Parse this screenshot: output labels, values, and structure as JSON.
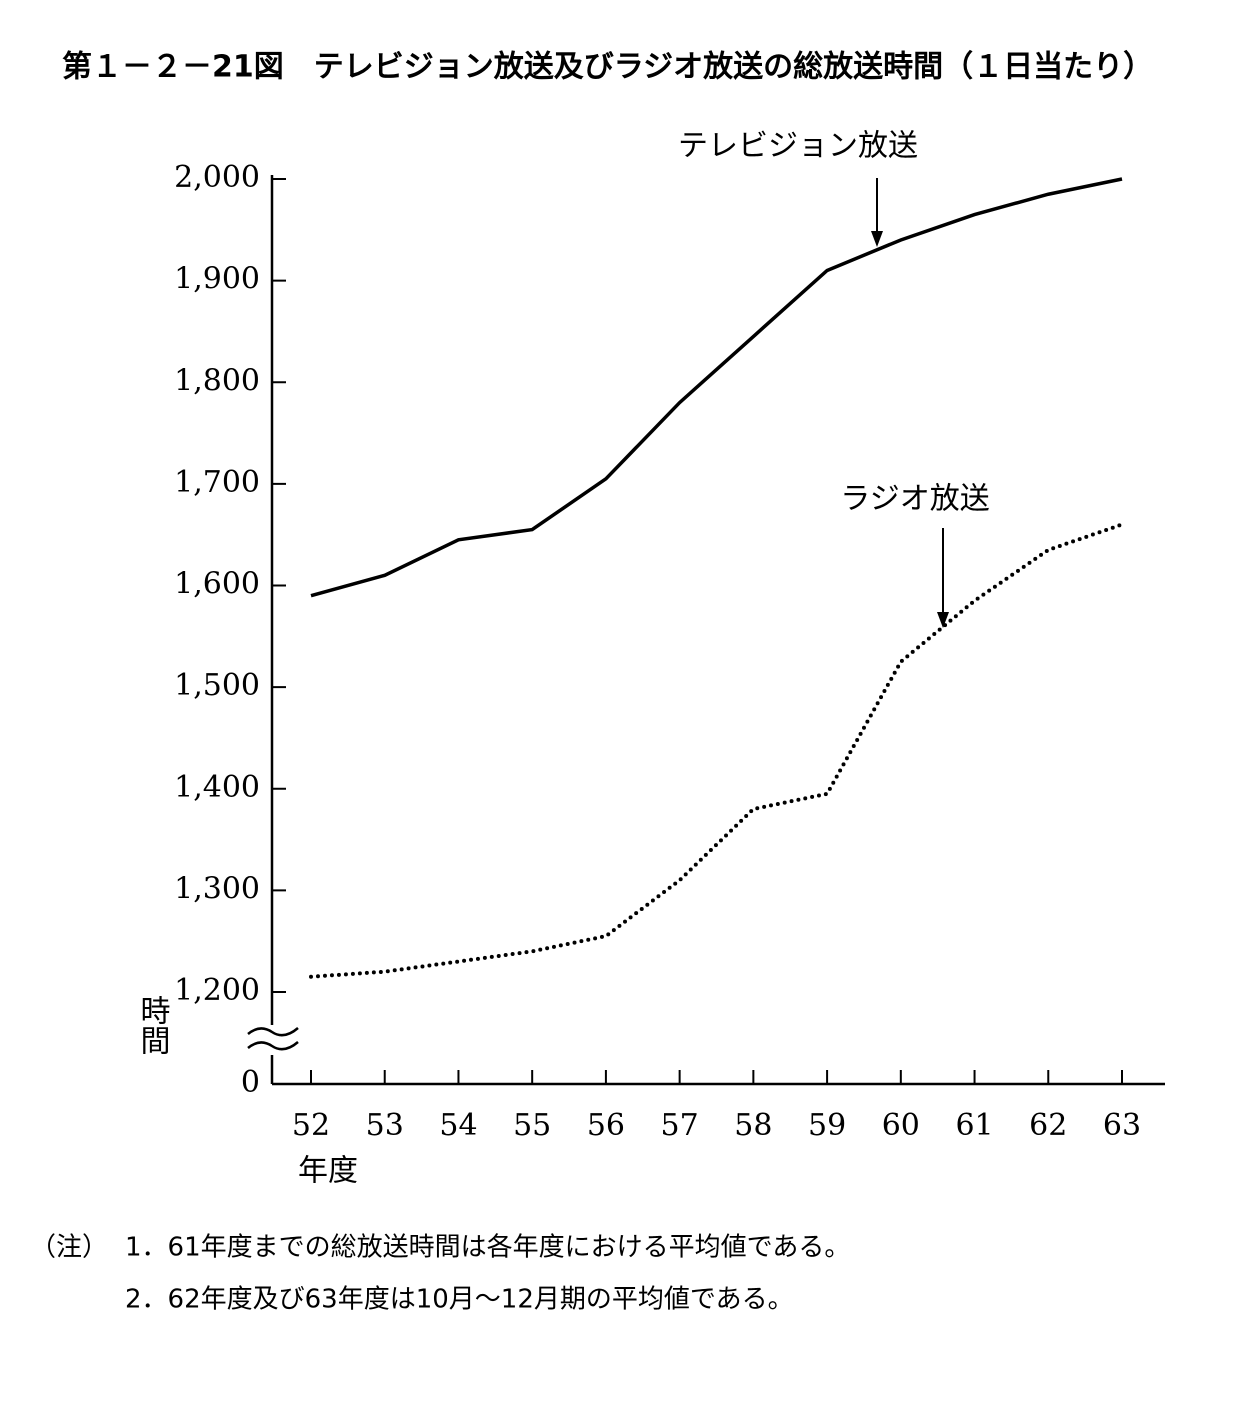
{
  "chart_data": {
    "type": "line",
    "title": "第１－２－21図　テレビジョン放送及びラジオ放送の総放送時間（１日当たり）",
    "x_label": "年度",
    "y_label": "時間",
    "categories": [
      "52",
      "53",
      "54",
      "55",
      "56",
      "57",
      "58",
      "59",
      "60",
      "61",
      "62",
      "63"
    ],
    "series": [
      {
        "name": "テレビジョン放送",
        "color": "#000000",
        "line_style": "solid",
        "values": [
          1590,
          1610,
          1645,
          1655,
          1705,
          1780,
          1845,
          1910,
          1940,
          1965,
          1985,
          2000
        ]
      },
      {
        "name": "ラジオ放送",
        "color": "#000000",
        "line_style": "dotted",
        "values": [
          1215,
          1220,
          1230,
          1240,
          1255,
          1310,
          1380,
          1395,
          1525,
          1585,
          1635,
          1660
        ]
      }
    ],
    "ylim": [
      1200,
      2000
    ],
    "yticks": [
      0,
      {
        "value": 1200,
        "label": "1,200"
      },
      {
        "value": 1300,
        "label": "1,300"
      },
      {
        "value": 1400,
        "label": "1,400"
      },
      {
        "value": 1500,
        "label": "1,500"
      },
      {
        "value": 1600,
        "label": "1,600"
      },
      {
        "value": 1700,
        "label": "1,700"
      },
      {
        "value": 1800,
        "label": "1,800"
      },
      {
        "value": 1900,
        "label": "1,900"
      },
      {
        "value": 2000,
        "label": "2,000"
      }
    ],
    "axis_break": true,
    "grid": false,
    "notes_label": "（注）",
    "notes": [
      "1．61年度までの総放送時間は各年度における平均値である。",
      "2．62年度及び63年度は10月～12月期の平均値である。"
    ]
  }
}
